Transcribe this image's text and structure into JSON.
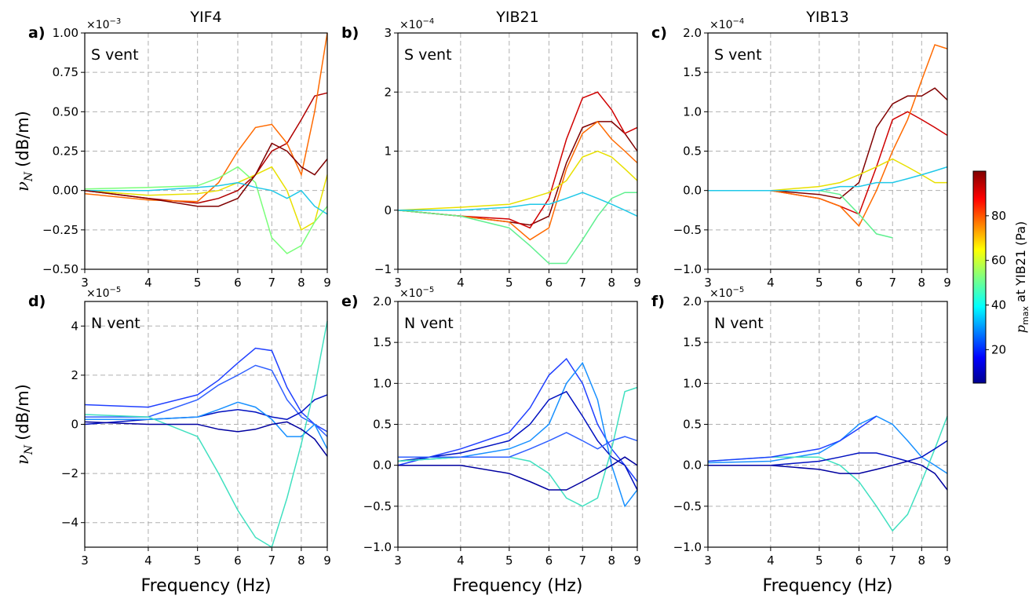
{
  "chart_data": [
    {
      "type": "line",
      "panel": "a)",
      "title": "YIF4",
      "annotation": "S vent",
      "offset_label": {
        "base": "×10",
        "exponent": "−3"
      },
      "ylabel": {
        "symbol": "ν",
        "subscript": "N",
        "unit": "(dB/m)"
      },
      "xscale": "log",
      "grid": true,
      "x": [
        3,
        4,
        5,
        5.5,
        6,
        6.5,
        7,
        7.5,
        8,
        8.5,
        9
      ],
      "xlim": [
        3,
        9
      ],
      "xticks": [
        3,
        4,
        5,
        6,
        7,
        8,
        9
      ],
      "ylim": [
        -0.5,
        1.0
      ],
      "yticks": [
        {
          "value": -0.5,
          "label": "−0.50"
        },
        {
          "value": -0.25,
          "label": "−0.25"
        },
        {
          "value": 0,
          "label": "0.00"
        },
        0.25,
        {
          "value": 0.5,
          "label": "0.50"
        },
        0.75,
        {
          "value": 1.0,
          "label": "1.00"
        }
      ],
      "series": [
        {
          "color": "#b00000",
          "values": [
            0,
            -0.05,
            -0.08,
            -0.05,
            0.0,
            0.1,
            0.25,
            0.3,
            0.45,
            0.6,
            0.62
          ]
        },
        {
          "color": "#ff6a00",
          "values": [
            -0.02,
            -0.06,
            -0.07,
            0.05,
            0.25,
            0.4,
            0.42,
            0.3,
            0.1,
            0.5,
            1.0
          ]
        },
        {
          "color": "#e8e000",
          "values": [
            0,
            -0.03,
            -0.02,
            0.0,
            0.05,
            0.1,
            0.15,
            0.0,
            -0.25,
            -0.2,
            0.1
          ]
        },
        {
          "color": "#7aff7a",
          "values": [
            0.01,
            0.02,
            0.03,
            0.08,
            0.15,
            0.05,
            -0.3,
            -0.4,
            -0.35,
            -0.2,
            -0.1
          ]
        },
        {
          "color": "#20c8e8",
          "values": [
            0,
            0,
            0.02,
            0.03,
            0.05,
            0.02,
            0,
            -0.05,
            0.0,
            -0.1,
            -0.15
          ]
        },
        {
          "color": "#800000",
          "values": [
            0,
            -0.05,
            -0.1,
            -0.1,
            -0.05,
            0.1,
            0.3,
            0.25,
            0.15,
            0.1,
            0.2
          ]
        }
      ]
    },
    {
      "type": "line",
      "panel": "b)",
      "title": "YIB21",
      "annotation": "S vent",
      "offset_label": {
        "base": "×10",
        "exponent": "−4"
      },
      "xscale": "log",
      "grid": true,
      "x": [
        3,
        4,
        5,
        5.5,
        6,
        6.5,
        7,
        7.5,
        8,
        8.5,
        9
      ],
      "xlim": [
        3,
        9
      ],
      "xticks": [
        3,
        4,
        5,
        6,
        7,
        8,
        9
      ],
      "ylim": [
        -1,
        3
      ],
      "yticks": [
        {
          "value": -1,
          "label": "−1"
        },
        0,
        1,
        2,
        3
      ],
      "series": [
        {
          "color": "#800000",
          "values": [
            0,
            -0.1,
            -0.2,
            -0.25,
            -0.1,
            0.8,
            1.4,
            1.5,
            1.5,
            1.3,
            1.0
          ]
        },
        {
          "color": "#d00000",
          "values": [
            0,
            -0.1,
            -0.15,
            -0.3,
            0.2,
            1.2,
            1.9,
            2.0,
            1.7,
            1.3,
            1.4
          ]
        },
        {
          "color": "#ff6a00",
          "values": [
            0,
            -0.1,
            -0.2,
            -0.5,
            -0.3,
            0.7,
            1.3,
            1.5,
            1.2,
            1.0,
            0.8
          ]
        },
        {
          "color": "#e8e000",
          "values": [
            0,
            0.05,
            0.1,
            0.2,
            0.3,
            0.5,
            0.9,
            1.0,
            0.9,
            0.7,
            0.5
          ]
        },
        {
          "color": "#60f090",
          "values": [
            0,
            -0.1,
            -0.3,
            -0.6,
            -0.9,
            -0.9,
            -0.5,
            -0.1,
            0.2,
            0.3,
            0.3
          ]
        },
        {
          "color": "#20c8e8",
          "values": [
            0,
            0,
            0.05,
            0.1,
            0.1,
            0.2,
            0.3,
            0.2,
            0.1,
            0.0,
            -0.1
          ]
        }
      ]
    },
    {
      "type": "line",
      "panel": "c)",
      "title": "YIB13",
      "annotation": "S vent",
      "offset_label": {
        "base": "×10",
        "exponent": "−4"
      },
      "xscale": "log",
      "grid": true,
      "x": [
        3,
        4,
        5,
        5.5,
        6,
        6.5,
        7,
        7.5,
        8,
        8.5,
        9
      ],
      "xlim": [
        3,
        9
      ],
      "xticks": [
        3,
        4,
        5,
        6,
        7,
        8,
        9
      ],
      "ylim": [
        -1,
        2
      ],
      "yticks": [
        {
          "value": -1,
          "label": "−1.0"
        },
        {
          "value": -0.5,
          "label": "−0.5"
        },
        {
          "value": 0,
          "label": "0.0"
        },
        0.5,
        {
          "value": 1,
          "label": "1.0"
        },
        1.5,
        {
          "value": 2,
          "label": "2.0"
        }
      ],
      "series": [
        {
          "color": "#800000",
          "values": [
            0,
            0,
            -0.05,
            -0.1,
            0.1,
            0.8,
            1.1,
            1.2,
            1.2,
            1.3,
            1.15
          ]
        },
        {
          "color": "#d00000",
          "values": [
            0,
            0,
            -0.1,
            -0.2,
            -0.3,
            0.3,
            0.9,
            1.0,
            0.9,
            0.8,
            0.7
          ]
        },
        {
          "color": "#ff6a00",
          "values": [
            0,
            0,
            -0.1,
            -0.2,
            -0.45,
            0,
            0.5,
            0.9,
            1.4,
            1.85,
            1.8
          ]
        },
        {
          "color": "#e8e000",
          "values": [
            0,
            0,
            0.05,
            0.1,
            0.2,
            0.3,
            0.4,
            0.3,
            0.2,
            0.1,
            0.1
          ]
        },
        {
          "color": "#60f090",
          "values": [
            0,
            0,
            0,
            -0.05,
            -0.3,
            -0.55,
            -0.6,
            null,
            null,
            null,
            null
          ]
        },
        {
          "color": "#20c8e8",
          "values": [
            0,
            0,
            0,
            0.05,
            0.05,
            0.1,
            0.1,
            0.15,
            0.2,
            0.25,
            0.3
          ]
        }
      ]
    },
    {
      "type": "line",
      "panel": "d)",
      "annotation": "N vent",
      "offset_label": {
        "base": "×10",
        "exponent": "−5"
      },
      "ylabel": {
        "symbol": "ν",
        "subscript": "N",
        "unit": "(dB/m)"
      },
      "xlabel": "Frequency (Hz)",
      "xscale": "log",
      "grid": true,
      "x": [
        3,
        4,
        5,
        5.5,
        6,
        6.5,
        7,
        7.5,
        8,
        8.5,
        9
      ],
      "xlim": [
        3,
        9
      ],
      "xticks": [
        3,
        4,
        5,
        6,
        7,
        8,
        9
      ],
      "ylim": [
        -5,
        5
      ],
      "yticks": [
        {
          "value": -4,
          "label": "−4"
        },
        {
          "value": -2,
          "label": "−2"
        },
        0,
        2,
        4
      ],
      "series": [
        {
          "color": "#2040ff",
          "values": [
            0.8,
            0.7,
            1.2,
            1.8,
            2.5,
            3.1,
            3.0,
            1.5,
            0.5,
            0,
            -0.3
          ]
        },
        {
          "color": "#3060ff",
          "values": [
            0.3,
            0.3,
            1.0,
            1.6,
            2.0,
            2.4,
            2.2,
            1.0,
            0.3,
            0,
            -0.5
          ]
        },
        {
          "color": "#0010c0",
          "values": [
            0,
            0.2,
            0.3,
            0.5,
            0.6,
            0.5,
            0.3,
            0.2,
            0.5,
            1.0,
            1.2
          ]
        },
        {
          "color": "#1890ff",
          "values": [
            0.2,
            0.2,
            0.3,
            0.6,
            0.9,
            0.7,
            0.2,
            -0.5,
            -0.5,
            0,
            -1
          ]
        },
        {
          "color": "#40e0c0",
          "values": [
            0.4,
            0.3,
            -0.5,
            -2,
            -3.5,
            -4.6,
            -5,
            -3,
            -0.8,
            1.5,
            4.2
          ]
        },
        {
          "color": "#0000a0",
          "values": [
            0.1,
            0,
            0,
            -0.2,
            -0.3,
            -0.2,
            0,
            0.1,
            -0.2,
            -0.6,
            -1.3
          ]
        }
      ]
    },
    {
      "type": "line",
      "panel": "e)",
      "annotation": "N vent",
      "offset_label": {
        "base": "×10",
        "exponent": "−5"
      },
      "xlabel": "Frequency (Hz)",
      "xscale": "log",
      "grid": true,
      "x": [
        3,
        4,
        5,
        5.5,
        6,
        6.5,
        7,
        7.5,
        8,
        8.5,
        9
      ],
      "xlim": [
        3,
        9
      ],
      "xticks": [
        3,
        4,
        5,
        6,
        7,
        8,
        9
      ],
      "ylim": [
        -1,
        2
      ],
      "yticks": [
        {
          "value": -1,
          "label": "−1.0"
        },
        {
          "value": -0.5,
          "label": "−0.5"
        },
        {
          "value": 0,
          "label": "0.0"
        },
        0.5,
        {
          "value": 1,
          "label": "1.0"
        },
        1.5,
        {
          "value": 2,
          "label": "2.0"
        }
      ],
      "series": [
        {
          "color": "#2040ff",
          "values": [
            0,
            0.2,
            0.4,
            0.7,
            1.1,
            1.3,
            1.0,
            0.5,
            0.2,
            0,
            -0.2
          ]
        },
        {
          "color": "#1890ff",
          "values": [
            0.05,
            0.1,
            0.2,
            0.3,
            0.5,
            1.0,
            1.25,
            0.8,
            0,
            -0.5,
            -0.3
          ]
        },
        {
          "color": "#0010c0",
          "values": [
            0.05,
            0.15,
            0.3,
            0.5,
            0.8,
            0.9,
            0.6,
            0.3,
            0.1,
            0,
            -0.3
          ]
        },
        {
          "color": "#40e0c0",
          "values": [
            0.05,
            0.1,
            0.1,
            0.05,
            -0.1,
            -0.4,
            -0.5,
            -0.4,
            0.2,
            0.9,
            0.95
          ]
        },
        {
          "color": "#0000a0",
          "values": [
            0,
            0,
            -0.1,
            -0.2,
            -0.3,
            -0.3,
            -0.2,
            -0.1,
            0,
            0.1,
            0
          ]
        },
        {
          "color": "#3060ff",
          "values": [
            0.1,
            0.1,
            0.1,
            0.2,
            0.3,
            0.4,
            0.3,
            0.2,
            0.3,
            0.35,
            0.3
          ]
        }
      ]
    },
    {
      "type": "line",
      "panel": "f)",
      "annotation": "N vent",
      "offset_label": {
        "base": "×10",
        "exponent": "−5"
      },
      "xlabel": "Frequency (Hz)",
      "xscale": "log",
      "grid": true,
      "x": [
        3,
        4,
        5,
        5.5,
        6,
        6.5,
        7,
        7.5,
        8,
        8.5,
        9
      ],
      "xlim": [
        3,
        9
      ],
      "xticks": [
        3,
        4,
        5,
        6,
        7,
        8,
        9
      ],
      "ylim": [
        -1,
        2
      ],
      "yticks": [
        {
          "value": -1,
          "label": "−1.0"
        },
        {
          "value": -0.5,
          "label": "−0.5"
        },
        {
          "value": 0,
          "label": "0.0"
        },
        0.5,
        {
          "value": 1,
          "label": "1.0"
        },
        1.5,
        {
          "value": 2,
          "label": "2.0"
        }
      ],
      "series": [
        {
          "color": "#1890ff",
          "values": [
            0.03,
            0.05,
            0.15,
            0.3,
            0.5,
            0.6,
            0.5,
            0.3,
            0.1,
            0,
            -0.1
          ]
        },
        {
          "color": "#40e0c0",
          "values": [
            0.05,
            0.1,
            0.1,
            0,
            -0.2,
            -0.5,
            -0.8,
            -0.6,
            -0.2,
            0.2,
            0.6
          ]
        },
        {
          "color": "#0010c0",
          "values": [
            0,
            0,
            0.05,
            0.1,
            0.15,
            0.15,
            0.1,
            0.05,
            0.1,
            0.2,
            0.3
          ]
        },
        {
          "color": "#0000a0",
          "values": [
            0,
            0,
            -0.05,
            -0.1,
            -0.1,
            -0.05,
            0,
            0.05,
            0,
            -0.1,
            -0.3
          ]
        },
        {
          "color": "#2040ff",
          "values": [
            0.05,
            0.1,
            0.2,
            0.3,
            0.45,
            0.6,
            null,
            null,
            null,
            null,
            null
          ]
        }
      ]
    }
  ],
  "colorbar": {
    "label": {
      "symbol": "p",
      "subscript": "max",
      "rest": "at YIB21 (Pa)"
    },
    "lim": [
      5,
      100
    ],
    "ticks": [
      20,
      40,
      60,
      80
    ]
  }
}
